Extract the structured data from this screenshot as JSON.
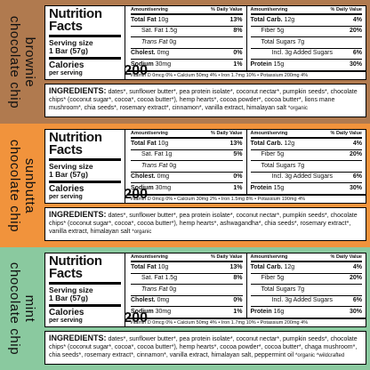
{
  "colors": {
    "band1": "#b07a4f",
    "band2": "#f1933c",
    "band3": "#8ac99f"
  },
  "labels": {
    "nutrition": "Nutrition",
    "facts": "Facts",
    "serving_label": "Serving size",
    "calories_label": "Calories",
    "per_serving": "per serving",
    "amount_per_serving": "Amount/serving",
    "daily_value": "% Daily Value",
    "ingredients_label": "INGREDIENTS:"
  },
  "panels": [
    {
      "flavor": [
        "brownie",
        "chocolate chip"
      ],
      "serving_value": "1 Bar (57g)",
      "calories": "200",
      "left_rows": [
        {
          "name": "Total Fat",
          "amount": "10g",
          "dv": "13%",
          "bold": true,
          "indent": 0
        },
        {
          "name": "Sat. Fat",
          "amount": "1.5g",
          "dv": "8%",
          "bold": false,
          "indent": 1
        },
        {
          "name": "Trans Fat",
          "amount": "0g",
          "dv": "",
          "bold": false,
          "indent": 1,
          "italic": true
        },
        {
          "name": "Cholest.",
          "amount": "0mg",
          "dv": "0%",
          "bold": true,
          "indent": 0
        },
        {
          "name": "Sodium",
          "amount": "30mg",
          "dv": "1%",
          "bold": true,
          "indent": 0
        }
      ],
      "right_rows": [
        {
          "name": "Total Carb.",
          "amount": "12g",
          "dv": "4%",
          "bold": true,
          "indent": 0
        },
        {
          "name": "Fiber",
          "amount": "5g",
          "dv": "20%",
          "bold": false,
          "indent": 1
        },
        {
          "name": "Total Sugars",
          "amount": "7g",
          "dv": "",
          "bold": false,
          "indent": 1
        },
        {
          "name": "Incl. 3g Added Sugars",
          "amount": "",
          "dv": "6%",
          "bold": false,
          "indent": 2
        },
        {
          "name": "Protein",
          "amount": "15g",
          "dv": "30%",
          "bold": true,
          "indent": 0
        }
      ],
      "vitamins": "Vitamin D 0mcg 0% • Calcium 50mg 4% • Iron 1.7mg 10% • Potassium 200mg 4%",
      "ingredients": "dates*, sunflower butter*, pea protein isolate*, coconut nectar*, pumpkin seeds*, chocolate chips* (coconut sugar*, cocoa*, cocoa butter*), hemp hearts*, cocoa powder*, cocoa butter*, lions mane mushroom*, chia seeds*, rosemary extract*, cinnamon*, vanilla extract, himalayan salt",
      "note": "*organic"
    },
    {
      "flavor": [
        "sunbutta",
        "chocolate chip"
      ],
      "serving_value": "1 Bar (57g)",
      "calories": "200",
      "left_rows": [
        {
          "name": "Total Fat",
          "amount": "10g",
          "dv": "13%",
          "bold": true,
          "indent": 0
        },
        {
          "name": "Sat. Fat",
          "amount": "1g",
          "dv": "5%",
          "bold": false,
          "indent": 1
        },
        {
          "name": "Trans Fat",
          "amount": "0g",
          "dv": "",
          "bold": false,
          "indent": 1,
          "italic": true
        },
        {
          "name": "Cholest.",
          "amount": "0mg",
          "dv": "0%",
          "bold": true,
          "indent": 0
        },
        {
          "name": "Sodium",
          "amount": "30mg",
          "dv": "1%",
          "bold": true,
          "indent": 0
        }
      ],
      "right_rows": [
        {
          "name": "Total Carb.",
          "amount": "12g",
          "dv": "4%",
          "bold": true,
          "indent": 0
        },
        {
          "name": "Fiber",
          "amount": "5g",
          "dv": "20%",
          "bold": false,
          "indent": 1
        },
        {
          "name": "Total Sugars",
          "amount": "7g",
          "dv": "",
          "bold": false,
          "indent": 1
        },
        {
          "name": "Incl. 3g Added Sugars",
          "amount": "",
          "dv": "6%",
          "bold": false,
          "indent": 2
        },
        {
          "name": "Protein",
          "amount": "15g",
          "dv": "30%",
          "bold": true,
          "indent": 0
        }
      ],
      "vitamins": "Vitamin D 0mcg 0% • Calcium 30mg 2% • Iron 1.5mg 8% • Potassium 190mg 4%",
      "ingredients": "dates*, sunflower butter*, pea protein isolate*, coconut nectar*, pumpkin seeds*, chocolate chips* (coconut sugar*, cocoa*, cocoa butter*), hemp hearts*, ashwagandha*, chia seeds*, rosemary extract*, vanilla extract, himalayan salt",
      "note": "*organic"
    },
    {
      "flavor": [
        "mint",
        "chocolate chip"
      ],
      "serving_value": "1 Bar (57g)",
      "calories": "200",
      "left_rows": [
        {
          "name": "Total Fat",
          "amount": "10g",
          "dv": "13%",
          "bold": true,
          "indent": 0
        },
        {
          "name": "Sat. Fat",
          "amount": "1.5g",
          "dv": "8%",
          "bold": false,
          "indent": 1
        },
        {
          "name": "Trans Fat",
          "amount": "0g",
          "dv": "",
          "bold": false,
          "indent": 1,
          "italic": true
        },
        {
          "name": "Cholest.",
          "amount": "0mg",
          "dv": "0%",
          "bold": true,
          "indent": 0
        },
        {
          "name": "Sodium",
          "amount": "30mg",
          "dv": "1%",
          "bold": true,
          "indent": 0
        }
      ],
      "right_rows": [
        {
          "name": "Total Carb.",
          "amount": "12g",
          "dv": "4%",
          "bold": true,
          "indent": 0
        },
        {
          "name": "Fiber",
          "amount": "5g",
          "dv": "20%",
          "bold": false,
          "indent": 1
        },
        {
          "name": "Total Sugars",
          "amount": "7g",
          "dv": "",
          "bold": false,
          "indent": 1
        },
        {
          "name": "Incl. 3g Added Sugars",
          "amount": "",
          "dv": "6%",
          "bold": false,
          "indent": 2
        },
        {
          "name": "Protein",
          "amount": "16g",
          "dv": "30%",
          "bold": true,
          "indent": 0
        }
      ],
      "vitamins": "Vitamin D 0mcg 0% • Calcium 50mg 4% • Iron 1.7mg 10% • Potassium 200mg 4%",
      "ingredients": "dates*, sunflower butter*, pea protein isolate*, coconut nectar*, pumpkin seeds*, chocolate chips* (coconut sugar*, cocoa*, cocoa butter*), hemp hearts*, cocoa powder*, cocoa butter*, chaga mushroom*, chia seeds*, rosemary extract*, cinnamon*, vanilla extract, himalayan salt, peppermint oil",
      "note": "*organic ^wildcrafted"
    }
  ]
}
